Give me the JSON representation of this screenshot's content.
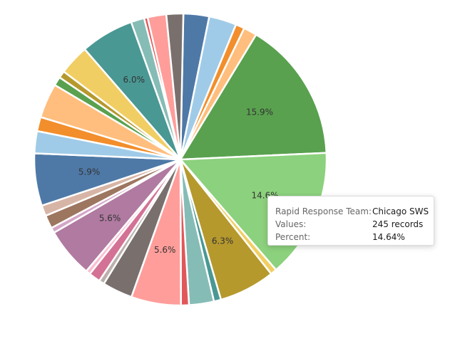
{
  "chart_data": {
    "type": "pie",
    "slices": [
      {
        "percent": 2.9,
        "color": "#4e79a7",
        "label": ""
      },
      {
        "percent": 3.1,
        "color": "#a0cbe8",
        "label": ""
      },
      {
        "percent": 1.0,
        "color": "#f28e2b",
        "label": ""
      },
      {
        "percent": 1.5,
        "color": "#ffbe7d",
        "label": ""
      },
      {
        "percent": 15.9,
        "color": "#59a14f",
        "label": "15.9%"
      },
      {
        "percent": 14.64,
        "color": "#8cd17d",
        "label": "14.6%"
      },
      {
        "percent": 0.7,
        "color": "#f1ce63",
        "label": ""
      },
      {
        "percent": 6.3,
        "color": "#b6992d",
        "label": "6.3%"
      },
      {
        "percent": 0.8,
        "color": "#499894",
        "label": ""
      },
      {
        "percent": 2.8,
        "color": "#86bcb6",
        "label": ""
      },
      {
        "percent": 0.9,
        "color": "#e15759",
        "label": ""
      },
      {
        "percent": 5.6,
        "color": "#ff9d9a",
        "label": "5.6%"
      },
      {
        "percent": 3.4,
        "color": "#79706e",
        "label": ""
      },
      {
        "percent": 0.6,
        "color": "#bab0ac",
        "label": ""
      },
      {
        "percent": 1.3,
        "color": "#d37295",
        "label": ""
      },
      {
        "percent": 0.5,
        "color": "#fabfd2",
        "label": ""
      },
      {
        "percent": 5.6,
        "color": "#b07aa1",
        "label": "5.6%"
      },
      {
        "percent": 0.6,
        "color": "#d4a6c8",
        "label": ""
      },
      {
        "percent": 1.5,
        "color": "#9d7660",
        "label": ""
      },
      {
        "percent": 1.2,
        "color": "#d7b5a6",
        "label": ""
      },
      {
        "percent": 5.9,
        "color": "#4e79a7",
        "label": "5.9%"
      },
      {
        "percent": 2.5,
        "color": "#a0cbe8",
        "label": ""
      },
      {
        "percent": 1.6,
        "color": "#f28e2b",
        "label": ""
      },
      {
        "percent": 3.9,
        "color": "#ffbe7d",
        "label": ""
      },
      {
        "percent": 1.0,
        "color": "#59a14f",
        "label": ""
      },
      {
        "percent": 0.8,
        "color": "#b6992d",
        "label": ""
      },
      {
        "percent": 3.4,
        "color": "#f1ce63",
        "label": ""
      },
      {
        "percent": 6.0,
        "color": "#499894",
        "label": "6.0%"
      },
      {
        "percent": 1.5,
        "color": "#86bcb6",
        "label": ""
      },
      {
        "percent": 0.4,
        "color": "#e15759",
        "label": ""
      },
      {
        "percent": 2.1,
        "color": "#ff9d9a",
        "label": ""
      },
      {
        "percent": 1.9,
        "color": "#79706e",
        "label": ""
      }
    ]
  },
  "tooltip": {
    "rows": [
      {
        "key": "Rapid Response Team:",
        "value": "Chicago SWS"
      },
      {
        "key": "Values:",
        "value": "245 records"
      },
      {
        "key": "Percent:",
        "value": "14.64%"
      }
    ]
  }
}
